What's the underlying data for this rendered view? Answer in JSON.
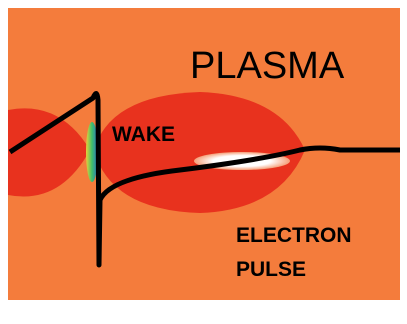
{
  "labels": {
    "plasma": "PLASMA",
    "wake": "WAKE",
    "pulse": [
      "ELECTRON",
      "PULSE"
    ]
  }
}
